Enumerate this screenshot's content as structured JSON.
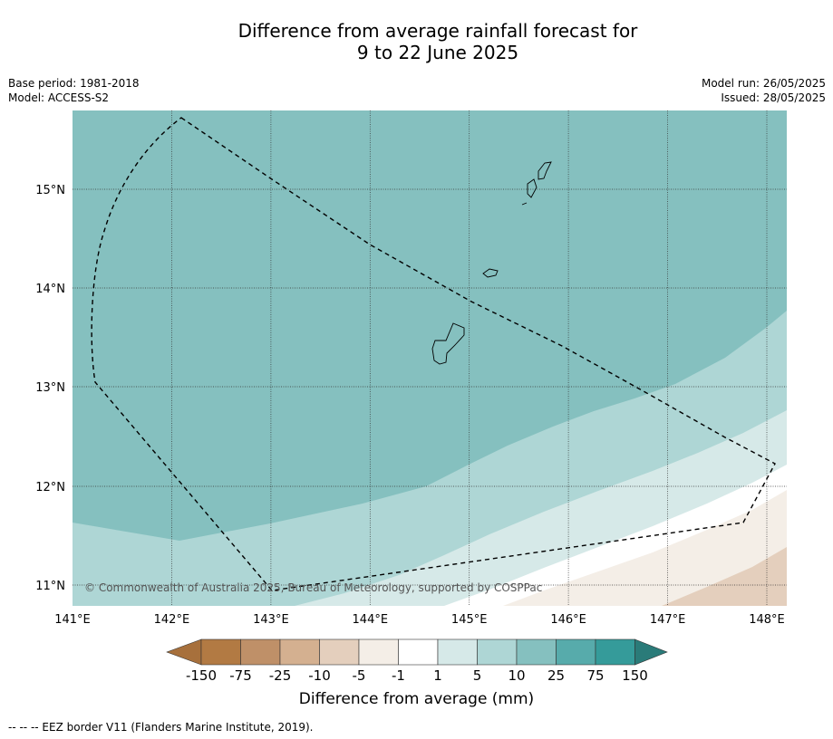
{
  "title_line1": "Difference from average rainfall forecast for",
  "title_line2": "9 to 22 June 2025",
  "meta_left": {
    "base_period": "Base period: 1981-2018",
    "model": "Model: ACCESS-S2"
  },
  "meta_right": {
    "model_run": "Model run: 26/05/2025",
    "issued": "Issued: 28/05/2025"
  },
  "map": {
    "lon_range": [
      141.0,
      148.2
    ],
    "lat_range": [
      10.8,
      15.8
    ],
    "lon_ticks": [
      "141°E",
      "142°E",
      "143°E",
      "144°E",
      "145°E",
      "146°E",
      "147°E",
      "148°E"
    ],
    "lat_ticks": [
      "11°N",
      "12°N",
      "13°N",
      "14°N",
      "15°N"
    ],
    "copyright": "© Commonwealth of Australia 2025, Bureau of Meteorology, supported by COSPPac",
    "colors": {
      "c_10_25": "#85c0bf",
      "c_5_10": "#aed6d5",
      "c_1_5": "#d6e9e8",
      "c_neg1_1": "#ffffff",
      "c_neg5_neg1": "#f4eee7",
      "c_neg10_neg5": "#e4cfbd"
    }
  },
  "colorbar": {
    "labels": [
      "-150",
      "-75",
      "-25",
      "-10",
      "-5",
      "-1",
      "1",
      "5",
      "10",
      "25",
      "75",
      "150"
    ],
    "colors": [
      "#a7703c",
      "#b27a43",
      "#bf9068",
      "#d4b090",
      "#e4cfbd",
      "#f4eee7",
      "#ffffff",
      "#d6e9e8",
      "#aed6d5",
      "#85c0bf",
      "#57abab",
      "#359b9a",
      "#2a7b79"
    ],
    "title": "Difference from average (mm)"
  },
  "footnote": "--  --  -- EEZ border V11 (Flanders Marine Institute, 2019)."
}
